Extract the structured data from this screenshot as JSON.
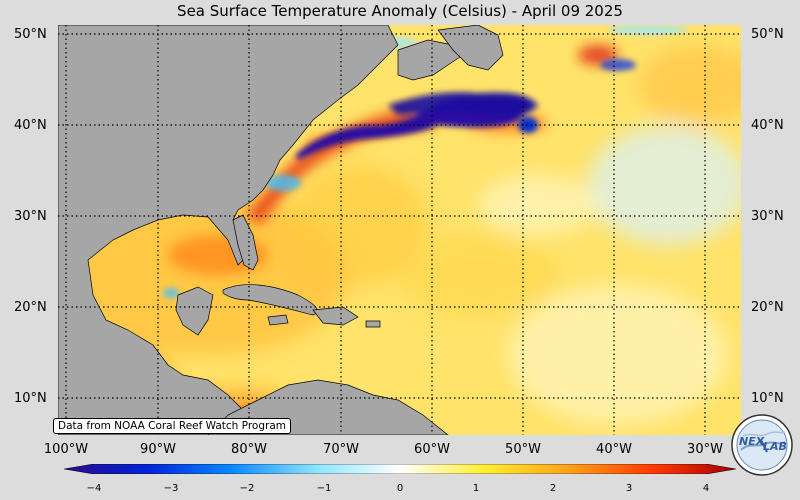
{
  "title": "Sea Surface Temperature Anomaly (Celsius) - April 09 2025",
  "credit": "Data from NOAA Coral Reef Watch Program",
  "logo_text": "NEXLAB",
  "lat_labels": [
    "50°N",
    "40°N",
    "30°N",
    "20°N",
    "10°N"
  ],
  "lon_labels": [
    "100°W",
    "90°W",
    "80°W",
    "70°W",
    "60°W",
    "50°W",
    "40°W",
    "30°W"
  ],
  "colorbar": {
    "ticks": [
      "−4",
      "−3",
      "−2",
      "−1",
      "0",
      "1",
      "2",
      "3",
      "4"
    ],
    "range": [
      -4,
      4
    ],
    "colors": [
      "#2a0a8a",
      "#0024d6",
      "#0a8aff",
      "#8ee4ff",
      "#ffffff",
      "#ffee33",
      "#ffa31a",
      "#ff3a00",
      "#a80000"
    ]
  },
  "map_colors": {
    "ocean_base": "#ffe36a",
    "land": "#a6a6a6",
    "cold_anomaly": "#2a10a0",
    "warm_anomaly": "#d81e00"
  }
}
